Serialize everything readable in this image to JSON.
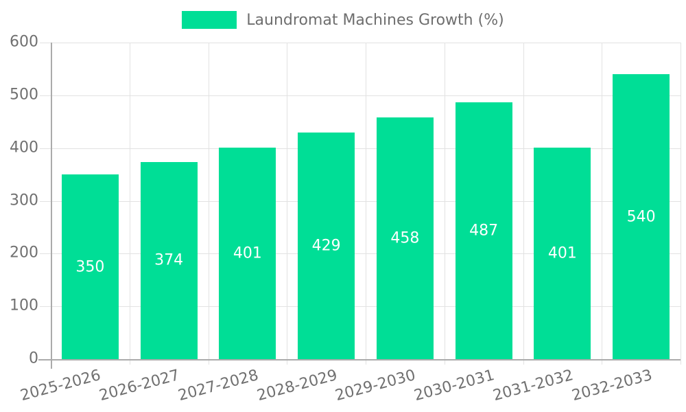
{
  "legend": {
    "label": "Laundromat Machines Growth (%)"
  },
  "colors": {
    "bar": "#00DE96",
    "grid": "#E2E2E2",
    "axis": "#ABABAB",
    "tick_label": "#707070",
    "legend_text": "#6E6E6E",
    "value_label": "#FFFFFF",
    "background": "#FFFFFF"
  },
  "chart_data": {
    "type": "bar",
    "title": "Laundromat Machines Growth (%)",
    "categories": [
      "2025-2026",
      "2026-2027",
      "2027-2028",
      "2028-2029",
      "2029-2030",
      "2030-2031",
      "2031-2032",
      "2032-2033"
    ],
    "values": [
      350,
      374,
      401,
      429,
      458,
      487,
      401,
      540
    ],
    "xlabel": "",
    "ylabel": "",
    "ylim": [
      0,
      600
    ],
    "yticks": [
      0,
      100,
      200,
      300,
      400,
      500,
      600
    ],
    "grid": true,
    "gridlines": "horizontal-and-vertical",
    "legend_position": "top-center",
    "value_labels": "inside-center",
    "x_tick_label_rotation_deg": -15
  }
}
